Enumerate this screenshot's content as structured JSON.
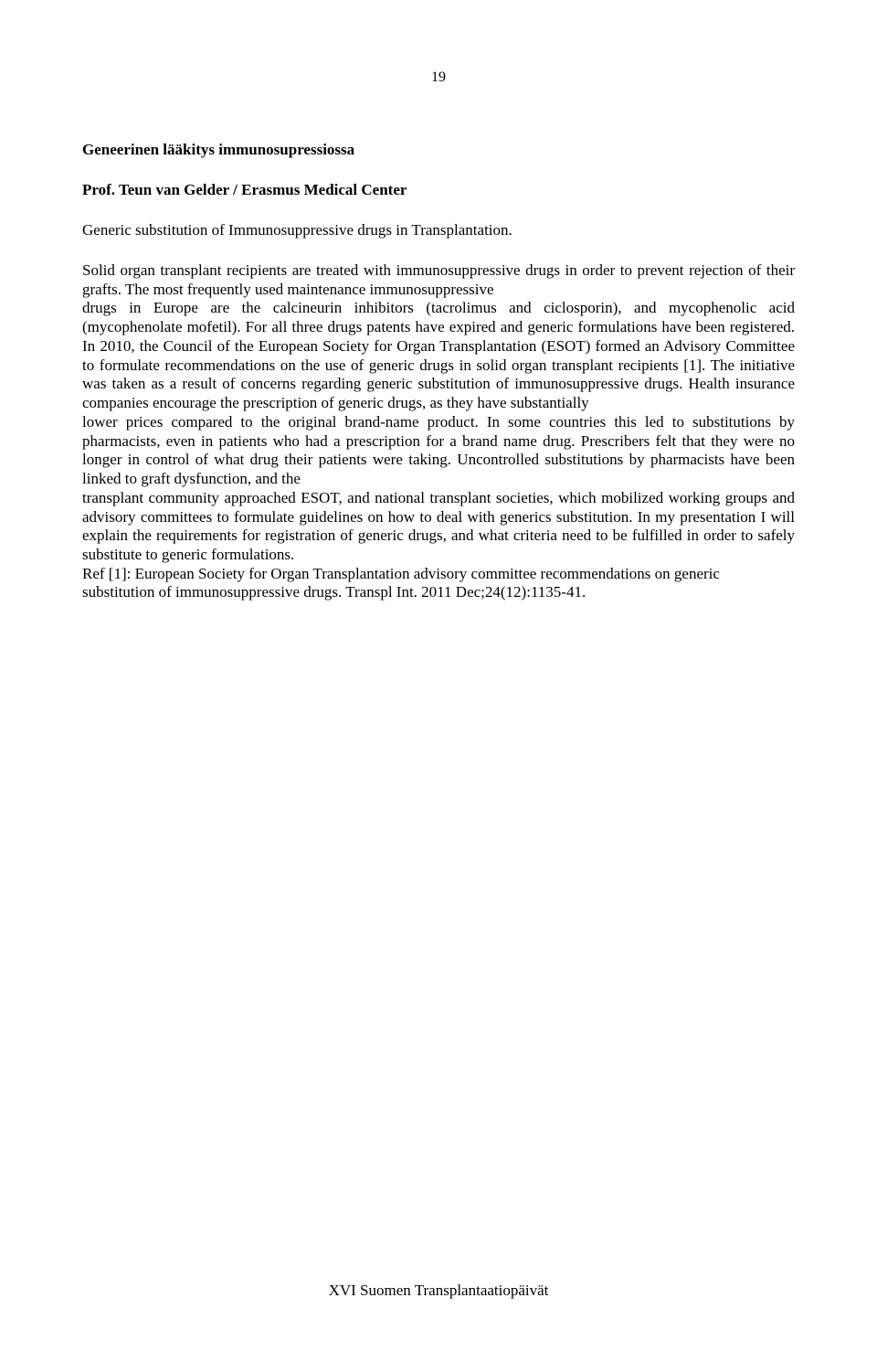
{
  "page_number": "19",
  "title": "Geneerinen lääkitys immunosupressiossa",
  "author": "Prof. Teun van Gelder / Erasmus Medical Center",
  "subtitle": "Generic substitution of Immunosuppressive drugs in Transplantation.",
  "paragraph1": "Solid organ transplant recipients are treated with immunosuppressive drugs in order to prevent rejection of their grafts. The most frequently used maintenance immunosuppressive",
  "paragraph2": "drugs in Europe are the calcineurin inhibitors (tacrolimus and ciclosporin), and mycophenolic acid (mycophenolate mofetil). For all three drugs patents have expired and generic formulations have been registered. In 2010, the Council of the European Society for Organ Transplantation (ESOT) formed an Advisory Committee to formulate recommendations on the use of generic drugs in solid organ transplant recipients [1]. The initiative was taken as a result of concerns regarding generic substitution of immunosuppressive drugs. Health insurance companies encourage the prescription of generic drugs, as they have substantially",
  "paragraph3": "lower prices compared to the original brand-name product. In some countries this led to substitutions by pharmacists, even in patients who had a prescription for a brand name drug. Prescribers felt that they were no longer in control of what drug their patients were taking. Uncontrolled substitutions by pharmacists have been linked to graft dysfunction, and the",
  "paragraph4": "transplant community approached ESOT, and national transplant societies, which mobilized working groups and advisory committees to formulate guidelines on how to deal with generics substitution. In my presentation I will explain the requirements for registration of generic drugs, and what criteria need to be fulfilled in order to safely substitute to generic formulations.",
  "reference": "Ref [1]: European Society for Organ Transplantation advisory committee recommendations on generic substitution of immunosuppressive drugs. Transpl Int. 2011 Dec;24(12):1135-41.",
  "footer": "XVI Suomen Transplantaatiopäivät"
}
